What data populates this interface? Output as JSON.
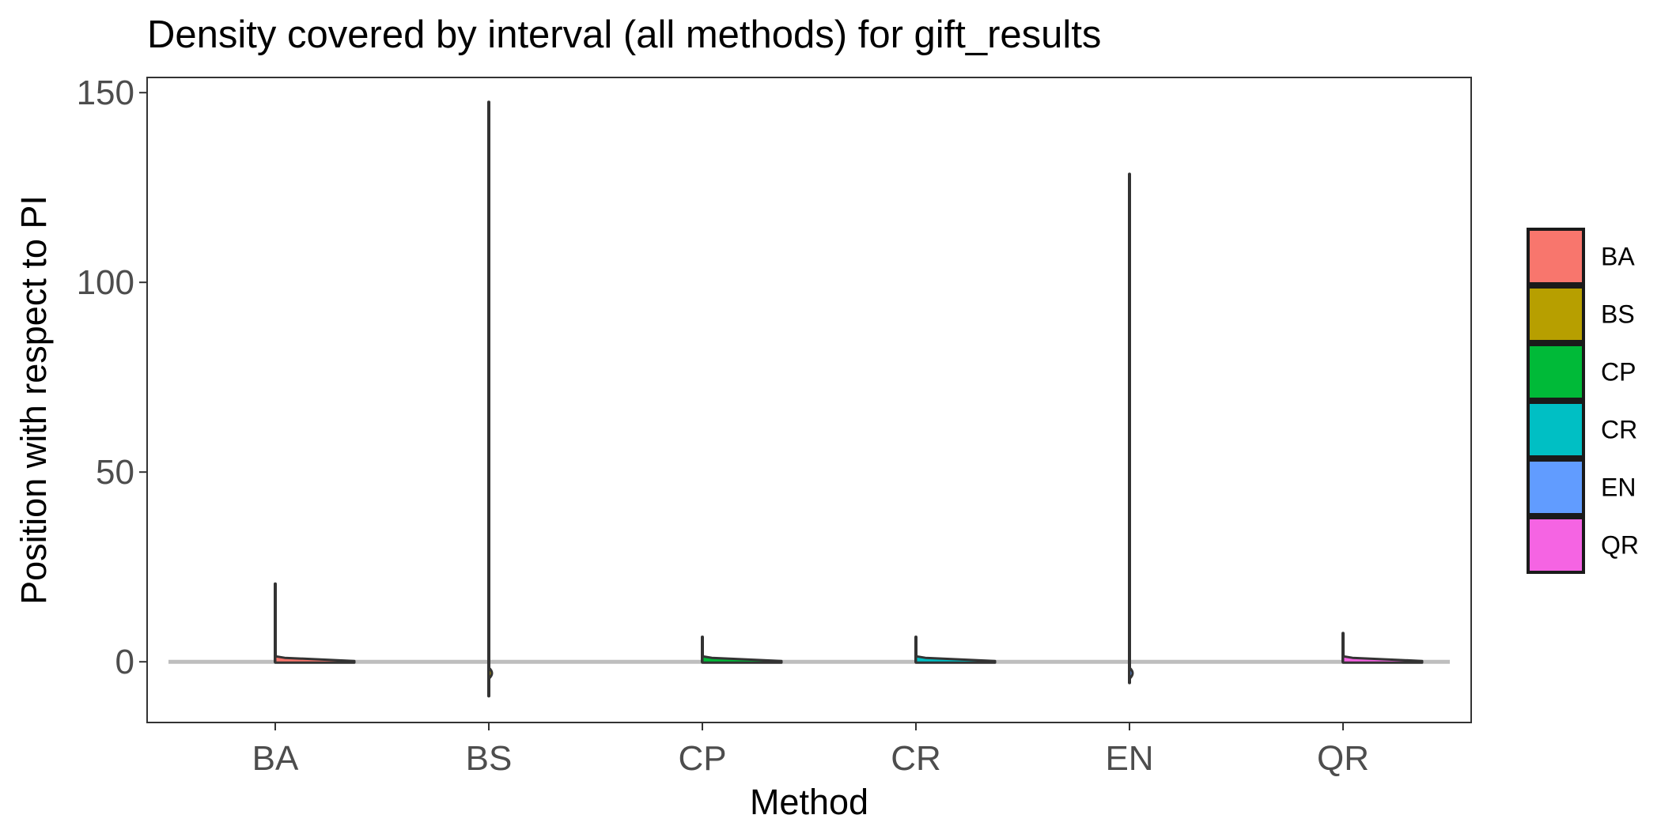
{
  "chart_data": {
    "type": "violin",
    "title": "Density covered by interval (all methods) for gift_results",
    "xlabel": "Method",
    "ylabel": "Position with respect to PI",
    "categories": [
      "BA",
      "BS",
      "CP",
      "CR",
      "EN",
      "QR"
    ],
    "ylim": [
      -16,
      154
    ],
    "yticks": [
      0,
      50,
      100,
      150
    ],
    "reference_line_y": 0,
    "series": [
      {
        "category": "BA",
        "min": 0,
        "max": 20.5,
        "bulge_y": 1,
        "color": "#F8766D"
      },
      {
        "category": "BS",
        "min": -9,
        "max": 147.5,
        "bulge_y": -3,
        "color": "#B79F00"
      },
      {
        "category": "CP",
        "min": 0,
        "max": 6.5,
        "bulge_y": 1,
        "color": "#00BA38"
      },
      {
        "category": "CR",
        "min": 0,
        "max": 6.5,
        "bulge_y": 1,
        "color": "#00BFC4"
      },
      {
        "category": "EN",
        "min": -5.5,
        "max": 128.5,
        "bulge_y": -3,
        "color": "#619CFF"
      },
      {
        "category": "QR",
        "min": 0,
        "max": 7.5,
        "bulge_y": 1,
        "color": "#F564E3"
      }
    ],
    "legend": {
      "position": "right",
      "items": [
        {
          "label": "BA",
          "color": "#F8766D"
        },
        {
          "label": "BS",
          "color": "#B79F00"
        },
        {
          "label": "CP",
          "color": "#00BA38"
        },
        {
          "label": "CR",
          "color": "#00BFC4"
        },
        {
          "label": "EN",
          "color": "#619CFF"
        },
        {
          "label": "QR",
          "color": "#F564E3"
        }
      ]
    },
    "grid": false
  }
}
